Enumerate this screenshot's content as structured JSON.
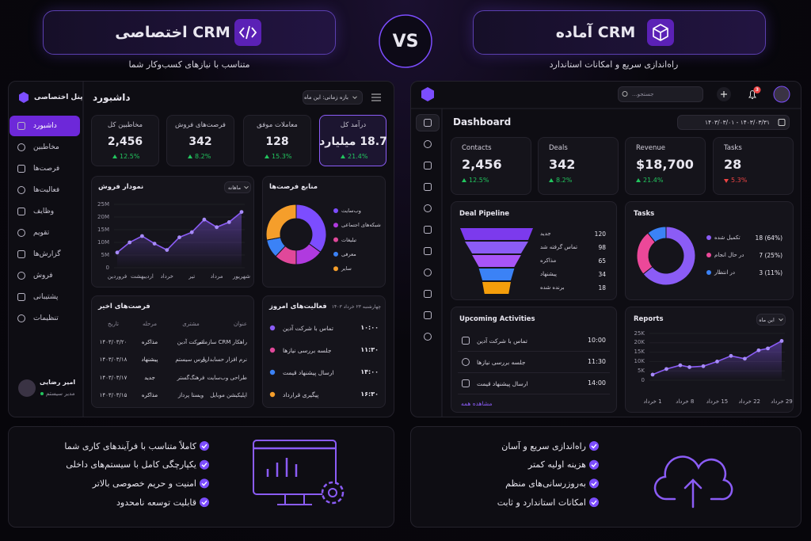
{
  "header": {
    "custom": {
      "title": "CRM اختصاصی",
      "subtitle": "متناسب با نیازهای کسب‌وکار شما"
    },
    "vs": "VS",
    "ready": {
      "title": "CRM آماده",
      "subtitle": "راه‌اندازی سریع و امکانات استاندارد"
    }
  },
  "custom_panel": {
    "brand": "پنل اختصاصی",
    "menu": [
      "داشبورد",
      "مخاطبین",
      "فرصت‌ها",
      "فعالیت‌ها",
      "وظایف",
      "تقویم",
      "گزارش‌ها",
      "فروش",
      "پشتیبانی",
      "تنظیمات"
    ],
    "user": {
      "name": "امیر رضایی",
      "role": "مدیر سیستم"
    },
    "page_title": "داشبورد",
    "period": "بازه زمانی: این ماه",
    "kpis": [
      {
        "label": "مخاطبین کل",
        "value": "2,456",
        "change": "12.5%",
        "trend": "up"
      },
      {
        "label": "فرصت‌های فروش",
        "value": "342",
        "change": "8.2%",
        "trend": "up"
      },
      {
        "label": "معاملات موفق",
        "value": "128",
        "change": "15.3%",
        "trend": "up"
      },
      {
        "label": "درآمد کل",
        "value": "18.7 میلیارد",
        "change": "21.4%",
        "trend": "up"
      }
    ],
    "sales_chart": {
      "type": "line",
      "title": "نمودار فروش",
      "filter": "ماهانه",
      "color": "#8b5cf6",
      "categories": [
        "فروردین",
        null,
        "اردیبهشت",
        null,
        "خرداد",
        null,
        "تیر",
        null,
        "مرداد",
        null,
        "شهریور"
      ],
      "values": [
        6,
        10,
        12.5,
        9.5,
        7,
        12,
        14,
        19,
        16,
        18,
        22
      ],
      "ylim": [
        0,
        25
      ],
      "yticks": [
        0,
        {
          "value": 5,
          "label": "5M"
        },
        {
          "value": 10,
          "label": "10M"
        },
        {
          "value": 15,
          "label": "15M"
        },
        {
          "value": 20,
          "label": "20M"
        },
        {
          "value": 25,
          "label": "25M"
        }
      ]
    },
    "sources_chart": {
      "type": "pie",
      "title": "منابع فرصت‌ها",
      "categories": [
        "وب‌سایت",
        "شبکه‌های اجتماعی",
        "تبلیغات",
        "معرفی",
        "سایر"
      ],
      "values": [
        35,
        15,
        12,
        10,
        28
      ],
      "colors": [
        "#7c4dff",
        "#b03adf",
        "#e0489a",
        "#3b82f6",
        "#f59e2b"
      ]
    },
    "recent_opportunities": {
      "title": "فرصت‌های اخیر",
      "columns": [
        "عنوان",
        "مشتری",
        "مرحله",
        "تاریخ"
      ],
      "rows": [
        [
          "راهکار CRM سازمانی",
          "شرکت آدین",
          "مذاکره",
          "۱۴۰۳/۰۳/۲۰"
        ],
        [
          "نرم افزار حسابداری",
          "پارس سیستم",
          "پیشنهاد",
          "۱۴۰۳/۰۳/۱۸"
        ],
        [
          "طراحی وب‌سایت",
          "فرهنگ‌گستر",
          "جدید",
          "۱۴۰۳/۰۳/۱۷"
        ],
        [
          "اپلیکیشن موبایل",
          "ویستا پرداز",
          "مذاکره",
          "۱۴۰۳/۰۳/۱۵"
        ]
      ]
    },
    "today_activities": {
      "title": "فعالیت‌های امروز",
      "date": "چهارشنبه ۲۳ خرداد ۱۴۰۳",
      "items": [
        {
          "time": "۱۰:۰۰",
          "text": "تماس با شرکت آدین",
          "color": "#8b5cf6"
        },
        {
          "time": "۱۱:۳۰",
          "text": "جلسه بررسی نیازها",
          "color": "#e0489a"
        },
        {
          "time": "۱۴:۰۰",
          "text": "ارسال پیشنهاد قیمت",
          "color": "#3b82f6"
        },
        {
          "time": "۱۶:۳۰",
          "text": "پیگیری قرارداد",
          "color": "#f59e2b"
        }
      ]
    }
  },
  "ready_panel": {
    "search_placeholder": "جستجو...",
    "notifications": "3",
    "page_title": "Dashboard",
    "date_range": "۱۴۰۳/۰۳/۰۱ - ۱۴۰۳/۰۳/۳۱",
    "kpis": [
      {
        "label": "Contacts",
        "value": "2,456",
        "change": "12.5%",
        "trend": "up"
      },
      {
        "label": "Deals",
        "value": "342",
        "change": "8.2%",
        "trend": "up"
      },
      {
        "label": "Revenue",
        "value": "$18,700",
        "change": "21.4%",
        "trend": "up"
      },
      {
        "label": "Tasks",
        "value": "28",
        "change": "5.3%",
        "trend": "down"
      }
    ],
    "pipeline": {
      "type": "funnel",
      "title": "Deal Pipeline",
      "categories": [
        "جدید",
        "تماس گرفته شد",
        "مذاکره",
        "پیشنهاد",
        "برنده شده"
      ],
      "values": [
        120,
        98,
        65,
        34,
        18
      ],
      "colors": [
        "#7c3aed",
        "#8b5cf6",
        "#a855f7",
        "#3b82f6",
        "#f59e0b"
      ]
    },
    "tasks": {
      "type": "pie",
      "title": "Tasks",
      "categories": [
        "تکمیل شده",
        "در حال انجام",
        "در انتظار"
      ],
      "values": [
        18,
        7,
        3
      ],
      "value_labels": [
        "18 (64%)",
        "7 (25%)",
        "3 (11%)"
      ],
      "colors": [
        "#8b5cf6",
        "#ec4899",
        "#3b82f6"
      ]
    },
    "upcoming": {
      "title": "Upcoming Activities",
      "items": [
        {
          "text": "تماس با شرکت آدین",
          "time": "10:00"
        },
        {
          "text": "جلسه بررسی نیازها",
          "time": "11:30"
        },
        {
          "text": "ارسال پیشنهاد قیمت",
          "time": "14:00"
        }
      ],
      "view_all": "مشاهده همه"
    },
    "reports": {
      "type": "line",
      "title": "Reports",
      "filter": "این ماه",
      "color": "#8b5cf6",
      "x": [
        1,
        4,
        7,
        9,
        12,
        15,
        18,
        21,
        24,
        26,
        29
      ],
      "values": [
        3,
        6,
        8,
        7,
        7.5,
        10,
        13,
        11.5,
        16,
        17,
        21
      ],
      "xlim": [
        1,
        29
      ],
      "xticks": [
        {
          "value": 1,
          "label": "1 خرداد"
        },
        {
          "value": 8,
          "label": "8 خرداد"
        },
        {
          "value": 15,
          "label": "15 خرداد"
        },
        {
          "value": 22,
          "label": "22 خرداد"
        },
        {
          "value": 29,
          "label": "29 خرداد"
        }
      ],
      "ylim": [
        0,
        25
      ],
      "yticks": [
        0,
        {
          "value": 5,
          "label": "5K"
        },
        {
          "value": 10,
          "label": "10K"
        },
        {
          "value": 15,
          "label": "15K"
        },
        {
          "value": 20,
          "label": "20K"
        },
        {
          "value": 25,
          "label": "25K"
        }
      ]
    }
  },
  "features": {
    "custom": [
      "کاملاً متناسب با فرآیندهای کاری شما",
      "یکپارچگی کامل با سیستم‌های داخلی",
      "امنیت و حریم خصوصی بالاتر",
      "قابلیت توسعه نامحدود"
    ],
    "ready": [
      "راه‌اندازی سریع و آسان",
      "هزینه اولیه کمتر",
      "به‌روزرسانی‌های منظم",
      "امکانات استاندارد و ثابت"
    ]
  }
}
